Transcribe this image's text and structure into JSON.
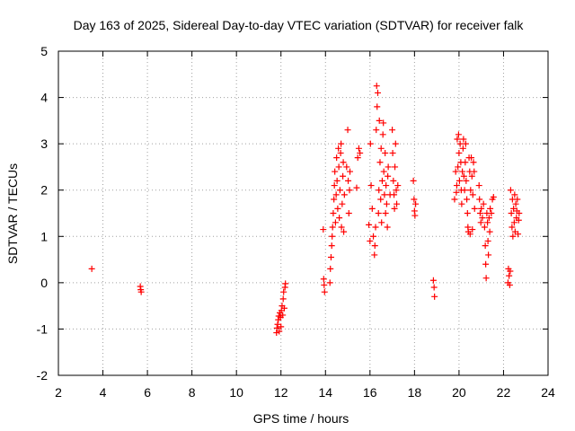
{
  "chart_data": {
    "type": "scatter",
    "title": "Day 163 of 2025, Sidereal Day-to-day VTEC variation (SDTVAR) for receiver falk",
    "xlabel": "GPS time / hours",
    "ylabel": "SDTVAR / TECUs",
    "xlim": [
      2,
      24
    ],
    "ylim": [
      -2,
      5
    ],
    "xticks": [
      2,
      4,
      6,
      8,
      10,
      12,
      14,
      16,
      18,
      20,
      22,
      24
    ],
    "yticks": [
      -2,
      -1,
      0,
      1,
      2,
      3,
      4,
      5
    ],
    "grid": true,
    "marker": "+",
    "colors": {
      "points": "#ff0000",
      "grid": "#a0a0a0",
      "axes": "#000000"
    },
    "series": [
      {
        "name": "SDTVAR",
        "points": [
          [
            3.5,
            0.3
          ],
          [
            5.68,
            -0.08
          ],
          [
            5.7,
            -0.15
          ],
          [
            5.72,
            -0.2
          ],
          [
            11.8,
            -1.08
          ],
          [
            11.82,
            -0.98
          ],
          [
            11.85,
            -0.9
          ],
          [
            11.88,
            -0.8
          ],
          [
            11.9,
            -0.72
          ],
          [
            11.92,
            -1.05
          ],
          [
            11.95,
            -0.65
          ],
          [
            11.98,
            -0.75
          ],
          [
            12.0,
            -0.95
          ],
          [
            12.02,
            -0.6
          ],
          [
            12.05,
            -0.5
          ],
          [
            12.08,
            -0.7
          ],
          [
            12.1,
            -0.35
          ],
          [
            12.12,
            -0.2
          ],
          [
            12.15,
            -0.55
          ],
          [
            12.18,
            -0.1
          ],
          [
            12.2,
            -0.02
          ],
          [
            13.9,
            1.15
          ],
          [
            13.92,
            0.08
          ],
          [
            13.94,
            -0.05
          ],
          [
            13.96,
            -0.2
          ],
          [
            14.2,
            0.0
          ],
          [
            14.22,
            0.3
          ],
          [
            14.25,
            0.55
          ],
          [
            14.28,
            0.8
          ],
          [
            14.3,
            1.0
          ],
          [
            14.32,
            1.2
          ],
          [
            14.35,
            1.5
          ],
          [
            14.38,
            1.8
          ],
          [
            14.4,
            2.1
          ],
          [
            14.42,
            2.4
          ],
          [
            14.45,
            1.3
          ],
          [
            14.48,
            1.9
          ],
          [
            14.5,
            2.7
          ],
          [
            14.52,
            2.2
          ],
          [
            14.55,
            1.6
          ],
          [
            14.58,
            2.9
          ],
          [
            14.6,
            2.5
          ],
          [
            14.62,
            1.4
          ],
          [
            14.65,
            2.0
          ],
          [
            14.68,
            2.8
          ],
          [
            14.7,
            3.0
          ],
          [
            14.72,
            1.2
          ],
          [
            14.75,
            1.7
          ],
          [
            14.78,
            2.3
          ],
          [
            14.8,
            2.6
          ],
          [
            14.82,
            1.1
          ],
          [
            14.85,
            1.9
          ],
          [
            14.95,
            2.5
          ],
          [
            15.0,
            3.3
          ],
          [
            15.02,
            2.2
          ],
          [
            15.05,
            1.5
          ],
          [
            15.08,
            2.0
          ],
          [
            15.1,
            2.4
          ],
          [
            15.4,
            2.05
          ],
          [
            15.45,
            2.7
          ],
          [
            15.5,
            2.9
          ],
          [
            15.55,
            2.8
          ],
          [
            15.95,
            1.25
          ],
          [
            16.0,
            0.9
          ],
          [
            16.02,
            3.0
          ],
          [
            16.05,
            2.1
          ],
          [
            16.1,
            1.6
          ],
          [
            16.15,
            1.0
          ],
          [
            16.2,
            0.6
          ],
          [
            16.22,
            0.8
          ],
          [
            16.25,
            1.2
          ],
          [
            16.28,
            3.3
          ],
          [
            16.3,
            4.25
          ],
          [
            16.32,
            3.8
          ],
          [
            16.35,
            4.1
          ],
          [
            16.38,
            1.5
          ],
          [
            16.4,
            2.0
          ],
          [
            16.42,
            3.5
          ],
          [
            16.45,
            2.6
          ],
          [
            16.48,
            1.8
          ],
          [
            16.5,
            2.9
          ],
          [
            16.52,
            1.3
          ],
          [
            16.55,
            2.2
          ],
          [
            16.58,
            3.2
          ],
          [
            16.6,
            3.45
          ],
          [
            16.62,
            2.4
          ],
          [
            16.65,
            1.9
          ],
          [
            16.68,
            2.8
          ],
          [
            16.7,
            1.5
          ],
          [
            16.72,
            2.1
          ],
          [
            16.75,
            1.7
          ],
          [
            16.78,
            1.2
          ],
          [
            16.8,
            2.3
          ],
          [
            16.82,
            2.5
          ],
          [
            16.9,
            1.9
          ],
          [
            17.0,
            3.3
          ],
          [
            17.02,
            2.8
          ],
          [
            17.05,
            2.2
          ],
          [
            17.08,
            1.9
          ],
          [
            17.1,
            1.6
          ],
          [
            17.12,
            2.5
          ],
          [
            17.15,
            3.0
          ],
          [
            17.18,
            2.0
          ],
          [
            17.2,
            1.7
          ],
          [
            17.25,
            2.1
          ],
          [
            17.95,
            2.2
          ],
          [
            17.98,
            1.8
          ],
          [
            18.0,
            1.55
          ],
          [
            18.02,
            1.45
          ],
          [
            18.05,
            1.7
          ],
          [
            18.85,
            0.05
          ],
          [
            18.88,
            -0.1
          ],
          [
            18.9,
            -0.3
          ],
          [
            19.8,
            1.8
          ],
          [
            19.85,
            2.4
          ],
          [
            19.88,
            1.95
          ],
          [
            19.9,
            2.1
          ],
          [
            19.92,
            3.1
          ],
          [
            19.95,
            2.5
          ],
          [
            19.98,
            3.2
          ],
          [
            20.0,
            2.8
          ],
          [
            20.02,
            2.2
          ],
          [
            20.05,
            3.0
          ],
          [
            20.08,
            2.6
          ],
          [
            20.1,
            2.0
          ],
          [
            20.12,
            1.7
          ],
          [
            20.15,
            2.4
          ],
          [
            20.18,
            2.9
          ],
          [
            20.2,
            3.1
          ],
          [
            20.22,
            2.3
          ],
          [
            20.25,
            2.0
          ],
          [
            20.28,
            2.6
          ],
          [
            20.3,
            3.0
          ],
          [
            20.32,
            2.2
          ],
          [
            20.35,
            1.8
          ],
          [
            20.38,
            1.5
          ],
          [
            20.4,
            1.2
          ],
          [
            20.42,
            1.1
          ],
          [
            20.45,
            2.7
          ],
          [
            20.48,
            2.4
          ],
          [
            20.5,
            1.05
          ],
          [
            20.52,
            2.0
          ],
          [
            20.55,
            2.7
          ],
          [
            20.58,
            2.3
          ],
          [
            20.6,
            1.15
          ],
          [
            20.62,
            1.9
          ],
          [
            20.65,
            2.6
          ],
          [
            20.68,
            2.4
          ],
          [
            20.7,
            1.6
          ],
          [
            20.9,
            2.1
          ],
          [
            20.92,
            1.8
          ],
          [
            20.95,
            1.5
          ],
          [
            20.98,
            1.3
          ],
          [
            21.0,
            1.6
          ],
          [
            21.05,
            1.4
          ],
          [
            21.1,
            1.7
          ],
          [
            21.15,
            1.2
          ],
          [
            21.18,
            0.8
          ],
          [
            21.2,
            0.4
          ],
          [
            21.22,
            0.1
          ],
          [
            21.25,
            1.5
          ],
          [
            21.28,
            1.3
          ],
          [
            21.3,
            0.9
          ],
          [
            21.32,
            0.6
          ],
          [
            21.35,
            1.4
          ],
          [
            21.38,
            1.1
          ],
          [
            21.4,
            1.6
          ],
          [
            21.45,
            1.5
          ],
          [
            21.5,
            1.8
          ],
          [
            21.55,
            1.85
          ],
          [
            22.2,
            0.0
          ],
          [
            22.22,
            0.3
          ],
          [
            22.25,
            0.15
          ],
          [
            22.28,
            -0.05
          ],
          [
            22.3,
            0.25
          ],
          [
            22.32,
            2.0
          ],
          [
            22.35,
            1.5
          ],
          [
            22.38,
            1.2
          ],
          [
            22.4,
            1.8
          ],
          [
            22.42,
            1.0
          ],
          [
            22.45,
            1.6
          ],
          [
            22.48,
            1.3
          ],
          [
            22.5,
            1.9
          ],
          [
            22.52,
            1.1
          ],
          [
            22.55,
            1.7
          ],
          [
            22.58,
            1.4
          ],
          [
            22.6,
            1.55
          ],
          [
            22.62,
            1.8
          ],
          [
            22.65,
            1.05
          ],
          [
            22.68,
            1.35
          ],
          [
            22.7,
            1.5
          ]
        ]
      }
    ]
  }
}
